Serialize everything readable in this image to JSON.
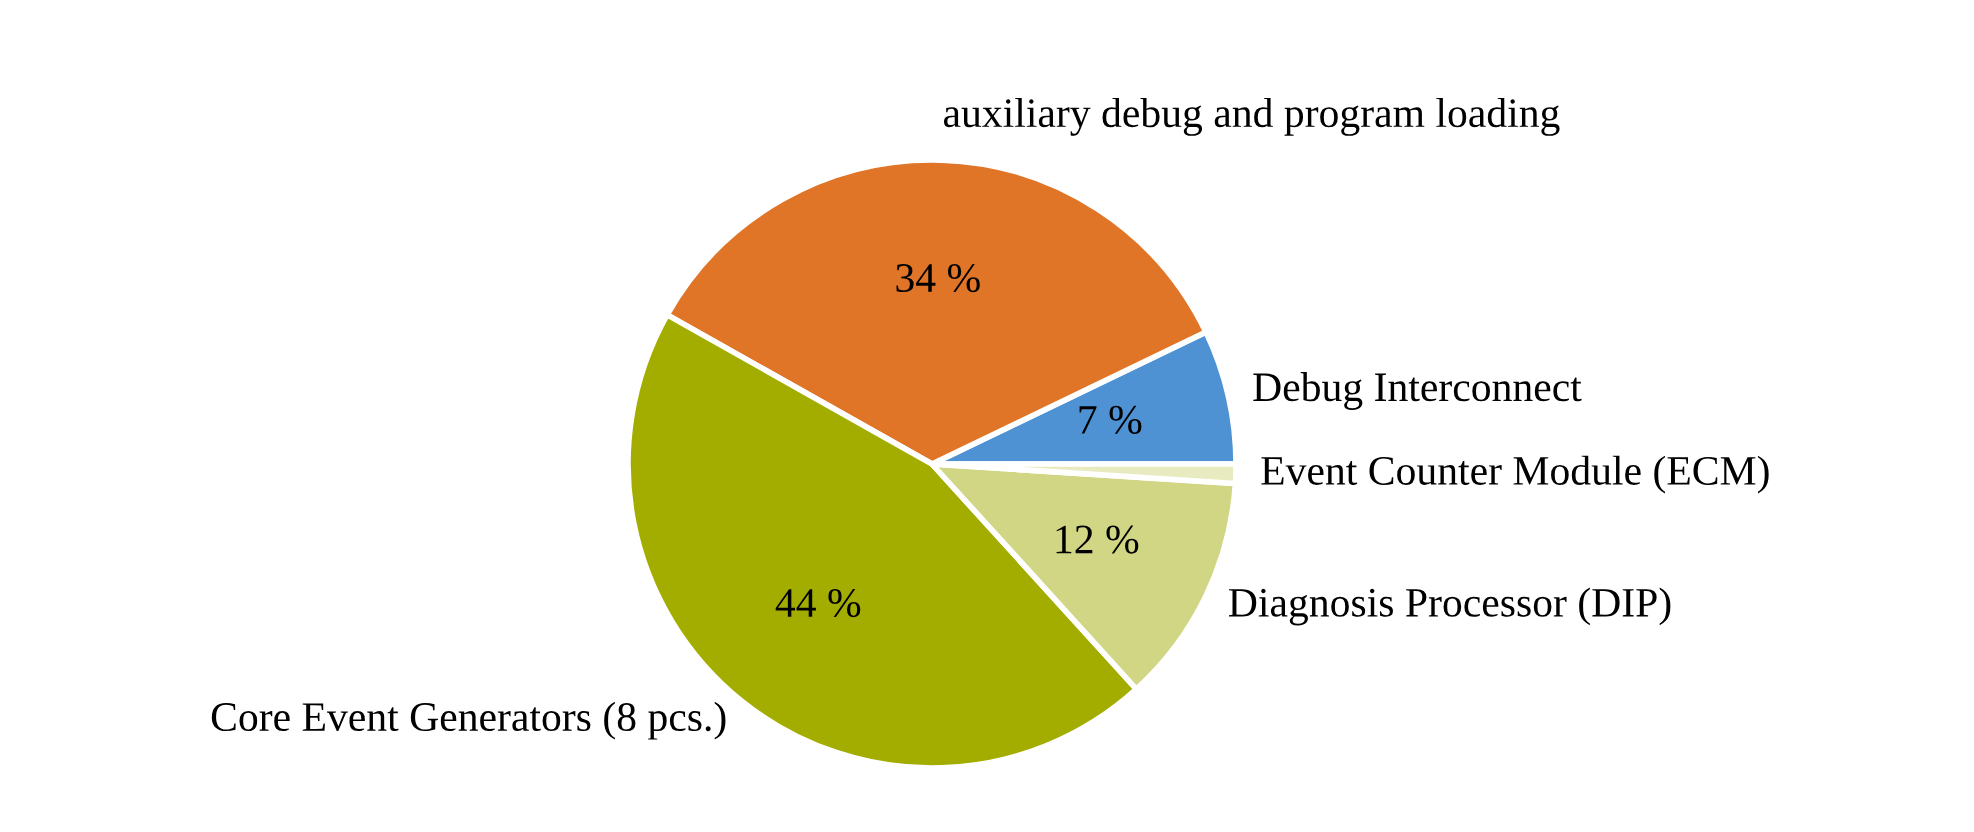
{
  "chart_data": {
    "type": "pie",
    "categories": [
      "Debug Interconnect",
      "auxiliary debug and program loading",
      "Core Event Generators (8 pcs.)",
      "Diagnosis Processor (DIP)",
      "Event Counter Module (ECM)"
    ],
    "values": [
      7,
      34,
      44,
      12,
      1
    ],
    "value_labels": [
      "7 %",
      "34 %",
      "44 %",
      "12 %",
      null
    ],
    "colors": [
      "#4e92d3",
      "#e07427",
      "#a3ad00",
      "#d0d683",
      "#e8ebc0"
    ]
  }
}
